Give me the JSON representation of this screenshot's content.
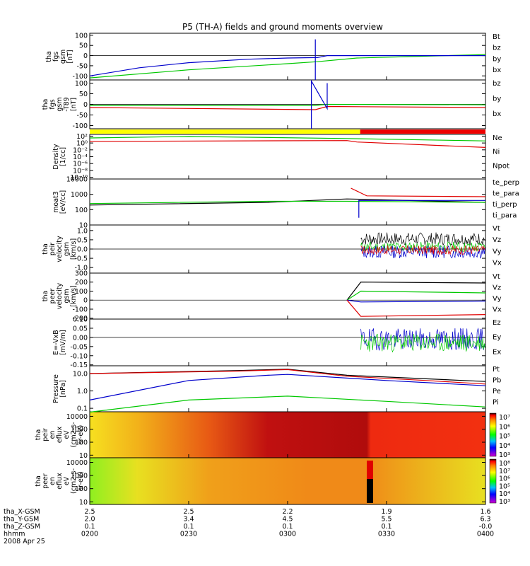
{
  "chart_data": {
    "type": "line",
    "title": "P5 (TH-A) fields and ground moments overview",
    "time_axis": {
      "ticks": [
        "0200",
        "0230",
        "0300",
        "0330",
        "0400"
      ],
      "range": [
        "0200",
        "0400"
      ]
    },
    "ephemeris": {
      "rows": [
        {
          "label": "tha_X-GSM",
          "values": [
            "2.5",
            "2.5",
            "2.2",
            "1.9",
            "1.6"
          ]
        },
        {
          "label": "tha_Y-GSM",
          "values": [
            "2.0",
            "3.4",
            "4.5",
            "5.5",
            "6.3"
          ]
        },
        {
          "label": "tha_Z-GSM",
          "values": [
            "0.1",
            "0.1",
            "0.1",
            "0.1",
            "-0.0"
          ]
        },
        {
          "label": "hhmm",
          "values": [
            "0200",
            "0230",
            "0300",
            "0330",
            "0400"
          ]
        }
      ],
      "date": "2008 Apr 25"
    },
    "panels": [
      {
        "ylabel": [
          "tha",
          "fgs",
          "gsm",
          "[nT]"
        ],
        "yticks": [
          "100",
          "50",
          "0",
          "-50",
          "-100"
        ],
        "ylim": [
          -120,
          110
        ],
        "legend": [
          {
            "name": "Bt",
            "color": "#000000"
          },
          {
            "name": "bz",
            "color": "#e00000"
          },
          {
            "name": "by",
            "color": "#00c800"
          },
          {
            "name": "bx",
            "color": "#0000cc"
          }
        ]
      },
      {
        "ylabel": [
          "tha",
          "fgs",
          "gsm",
          "-T89",
          "[nT]"
        ],
        "yticks": [
          "100",
          "50",
          "0",
          "-50",
          "-100"
        ],
        "ylim": [
          -115,
          115
        ],
        "legend": [
          {
            "name": "bz",
            "color": "#e00000"
          },
          {
            "name": "by",
            "color": "#00c800"
          },
          {
            "name": "bx",
            "color": "#0000cc"
          }
        ]
      },
      {
        "ylabel": [
          "Density",
          "[1/cc]"
        ],
        "yticks": [
          "10²",
          "10⁰",
          "10⁻²",
          "10⁻⁴",
          "10⁻⁶",
          "10⁻⁸",
          "10⁻¹⁰"
        ],
        "log": true,
        "ylim": [
          -10.5,
          2.5
        ],
        "legend": [
          {
            "name": "Ne",
            "color": "#e00000"
          },
          {
            "name": "Ni",
            "color": "#00c800"
          },
          {
            "name": "Npot",
            "color": "#0000cc"
          }
        ]
      },
      {
        "ylabel": [
          "moat3",
          "[eV/cc]"
        ],
        "yticks": [
          "10000",
          "1000",
          "100",
          "10"
        ],
        "log": true,
        "ylim": [
          1,
          4
        ],
        "legend": [
          {
            "name": "te_perp",
            "color": "#000000"
          },
          {
            "name": "te_para",
            "color": "#e00000"
          },
          {
            "name": "ti_perp",
            "color": "#00c800"
          },
          {
            "name": "ti_para",
            "color": "#0000cc"
          }
        ]
      },
      {
        "ylabel": [
          "tha",
          "peir",
          "velocity",
          "gsm",
          "[km/s]"
        ],
        "yticks": [
          "1.0",
          "0.5",
          "0.0",
          "-0.5",
          "-1.0"
        ],
        "ylim": [
          -1.3,
          1.3
        ],
        "legend": [
          {
            "name": "Vt",
            "color": "#000000"
          },
          {
            "name": "Vz",
            "color": "#e00000"
          },
          {
            "name": "Vy",
            "color": "#00c800"
          },
          {
            "name": "Vx",
            "color": "#0000cc"
          }
        ]
      },
      {
        "ylabel": [
          "tha",
          "peer",
          "velocity",
          "gsm",
          "[km/s]"
        ],
        "yticks": [
          "300",
          "200",
          "100",
          "0",
          "-100",
          "-200"
        ],
        "ylim": [
          -210,
          300
        ],
        "legend": [
          {
            "name": "Vt",
            "color": "#000000"
          },
          {
            "name": "Vz",
            "color": "#e00000"
          },
          {
            "name": "Vy",
            "color": "#00c800"
          },
          {
            "name": "Vx",
            "color": "#0000cc"
          }
        ]
      },
      {
        "ylabel": [
          "E=-VxB",
          "[mV/m]"
        ],
        "yticks": [
          "0.10",
          "0.05",
          "0.00",
          "-0.05",
          "-0.10",
          "-0.15"
        ],
        "ylim": [
          -0.155,
          0.1
        ],
        "legend": [
          {
            "name": "Ez",
            "color": "#e00000"
          },
          {
            "name": "Ey",
            "color": "#00c800"
          },
          {
            "name": "Ex",
            "color": "#0000cc"
          }
        ]
      },
      {
        "ylabel": [
          "Pressure",
          "[nPa]"
        ],
        "yticks": [
          "10.0",
          "1.0",
          "0.1"
        ],
        "log": true,
        "ylim": [
          -1.2,
          1.45
        ],
        "legend": [
          {
            "name": "Pt",
            "color": "#000000"
          },
          {
            "name": "Pb",
            "color": "#e00000"
          },
          {
            "name": "Pe",
            "color": "#00c800"
          },
          {
            "name": "Pi",
            "color": "#0000cc"
          }
        ]
      },
      {
        "ylabel": [
          "tha",
          "peir",
          "en",
          "eflux",
          "eV",
          "(cm2-s-",
          "sr-eV)"
        ],
        "yticks": [
          "10000",
          "1000",
          "100",
          "10"
        ],
        "log": true,
        "ylim": [
          0.8,
          4.35
        ],
        "colorbar": [
          "10⁷",
          "10⁶",
          "10⁵",
          "10⁴",
          "10³"
        ]
      },
      {
        "ylabel": [
          "tha",
          "peer",
          "en",
          "eflux",
          "eV",
          "(cm2-s-",
          "sr-eV)"
        ],
        "yticks": [
          "10000",
          "1000",
          "100",
          "10"
        ],
        "log": true,
        "ylim": [
          0.8,
          4.35
        ],
        "colorbar": [
          "10⁸",
          "10⁷",
          "10⁶",
          "10⁵",
          "10⁴",
          "10³"
        ]
      }
    ],
    "mode_bar": [
      {
        "from": "0200",
        "to": "0322",
        "color": "#ffff00"
      },
      {
        "from": "0322",
        "to": "0400",
        "color": "#ee0000"
      }
    ],
    "series_approx": {
      "fgs_by": [
        [
          0,
          -110
        ],
        [
          0.5,
          -70
        ],
        [
          1.0,
          -40
        ],
        [
          1.15,
          -30
        ],
        [
          1.35,
          -12
        ],
        [
          2.0,
          5
        ]
      ],
      "fgs_bx": [
        [
          0,
          -100
        ],
        [
          0.25,
          -60
        ],
        [
          0.5,
          -35
        ],
        [
          0.8,
          -18
        ],
        [
          1.0,
          -12
        ],
        [
          1.15,
          -10
        ],
        [
          1.2,
          0
        ],
        [
          2.0,
          0
        ]
      ],
      "pressure_Pt": [
        [
          0,
          10
        ],
        [
          0.75,
          15
        ],
        [
          1.0,
          18
        ],
        [
          1.3,
          8
        ],
        [
          1.7,
          5
        ],
        [
          2.0,
          3.5
        ]
      ],
      "pressure_Pi": [
        [
          0,
          0.3
        ],
        [
          0.5,
          4
        ],
        [
          0.9,
          8
        ],
        [
          1.0,
          9
        ],
        [
          1.5,
          4
        ],
        [
          2.0,
          2
        ]
      ],
      "pressure_Pe": [
        [
          0,
          0.06
        ],
        [
          0.5,
          0.3
        ],
        [
          1.0,
          0.5
        ],
        [
          1.5,
          0.25
        ],
        [
          2.0,
          0.12
        ]
      ],
      "density_Ne": [
        [
          0,
          3
        ],
        [
          1.3,
          5
        ],
        [
          1.35,
          2
        ],
        [
          2.0,
          0.05
        ]
      ],
      "density_Ni": [
        [
          0,
          30
        ],
        [
          0.5,
          80
        ],
        [
          1.3,
          20
        ],
        [
          2.0,
          4
        ]
      ]
    }
  }
}
